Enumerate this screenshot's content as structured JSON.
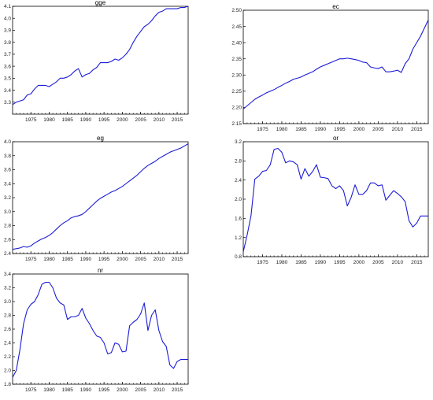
{
  "colors": {
    "series": "#1c1cd6",
    "axis": "#000000",
    "background": "#ffffff"
  },
  "chart_data": [
    {
      "type": "line",
      "title": "gge",
      "x": [
        1970,
        1971,
        1972,
        1973,
        1974,
        1975,
        1976,
        1977,
        1978,
        1979,
        1980,
        1981,
        1982,
        1983,
        1984,
        1985,
        1986,
        1987,
        1988,
        1989,
        1990,
        1991,
        1992,
        1993,
        1994,
        1995,
        1996,
        1997,
        1998,
        1999,
        2000,
        2001,
        2002,
        2003,
        2004,
        2005,
        2006,
        2007,
        2008,
        2009,
        2010,
        2011,
        2012,
        2013,
        2014,
        2015,
        2016,
        2017,
        2018
      ],
      "values": [
        3.28,
        3.3,
        3.31,
        3.32,
        3.36,
        3.37,
        3.41,
        3.44,
        3.44,
        3.44,
        3.43,
        3.45,
        3.47,
        3.5,
        3.5,
        3.51,
        3.53,
        3.56,
        3.58,
        3.51,
        3.53,
        3.54,
        3.57,
        3.59,
        3.63,
        3.63,
        3.63,
        3.64,
        3.66,
        3.65,
        3.67,
        3.7,
        3.74,
        3.8,
        3.85,
        3.89,
        3.93,
        3.95,
        3.98,
        4.02,
        4.05,
        4.06,
        4.08,
        4.08,
        4.08,
        4.08,
        4.09,
        4.09,
        4.1
      ],
      "ylim": [
        3.2,
        4.1
      ],
      "yticks": [
        "3.3",
        "3.4",
        "3.5",
        "3.6",
        "3.7",
        "3.8",
        "3.9",
        "4.0",
        "4.1"
      ],
      "yticks_val": [
        3.3,
        3.4,
        3.5,
        3.6,
        3.7,
        3.8,
        3.9,
        4.0,
        4.1
      ],
      "xlim": [
        1970,
        2018
      ],
      "xticks": [
        "1975",
        "1980",
        "1985",
        "1990",
        "1995",
        "2000",
        "2005",
        "2010",
        "2015"
      ],
      "xticks_val": [
        1975,
        1980,
        1985,
        1990,
        1995,
        2000,
        2005,
        2010,
        2015
      ]
    },
    {
      "type": "line",
      "title": "ec",
      "x": [
        1970,
        1971,
        1972,
        1973,
        1974,
        1975,
        1976,
        1977,
        1978,
        1979,
        1980,
        1981,
        1982,
        1983,
        1984,
        1985,
        1986,
        1987,
        1988,
        1989,
        1990,
        1991,
        1992,
        1993,
        1994,
        1995,
        1996,
        1997,
        1998,
        1999,
        2000,
        2001,
        2002,
        2003,
        2004,
        2005,
        2006,
        2007,
        2008,
        2009,
        2010,
        2011,
        2012,
        2013,
        2014,
        2015,
        2016,
        2017,
        2018
      ],
      "values": [
        2.195,
        2.205,
        2.215,
        2.225,
        2.232,
        2.238,
        2.245,
        2.25,
        2.255,
        2.262,
        2.268,
        2.275,
        2.28,
        2.287,
        2.29,
        2.294,
        2.3,
        2.305,
        2.31,
        2.318,
        2.325,
        2.33,
        2.335,
        2.34,
        2.345,
        2.35,
        2.35,
        2.352,
        2.35,
        2.348,
        2.345,
        2.34,
        2.338,
        2.325,
        2.322,
        2.32,
        2.325,
        2.31,
        2.31,
        2.312,
        2.315,
        2.308,
        2.335,
        2.35,
        2.38,
        2.4,
        2.42,
        2.445,
        2.47
      ],
      "ylim": [
        2.15,
        2.5
      ],
      "yticks": [
        "2.15",
        "2.20",
        "2.25",
        "2.30",
        "2.35",
        "2.40",
        "2.45",
        "2.50"
      ],
      "yticks_val": [
        2.15,
        2.2,
        2.25,
        2.3,
        2.35,
        2.4,
        2.45,
        2.5
      ],
      "xlim": [
        1970,
        2018
      ],
      "xticks": [
        "1975",
        "1980",
        "1985",
        "1990",
        "1995",
        "2000",
        "2005",
        "2010",
        "2015"
      ],
      "xticks_val": [
        1975,
        1980,
        1985,
        1990,
        1995,
        2000,
        2005,
        2010,
        2015
      ]
    },
    {
      "type": "line",
      "title": "eg",
      "x": [
        1970,
        1971,
        1972,
        1973,
        1974,
        1975,
        1976,
        1977,
        1978,
        1979,
        1980,
        1981,
        1982,
        1983,
        1984,
        1985,
        1986,
        1987,
        1988,
        1989,
        1990,
        1991,
        1992,
        1993,
        1994,
        1995,
        1996,
        1997,
        1998,
        1999,
        2000,
        2001,
        2002,
        2003,
        2004,
        2005,
        2006,
        2007,
        2008,
        2009,
        2010,
        2011,
        2012,
        2013,
        2014,
        2015,
        2016,
        2017,
        2018
      ],
      "values": [
        2.46,
        2.47,
        2.48,
        2.5,
        2.49,
        2.51,
        2.55,
        2.58,
        2.61,
        2.63,
        2.66,
        2.7,
        2.75,
        2.8,
        2.84,
        2.87,
        2.91,
        2.93,
        2.94,
        2.96,
        3.0,
        3.05,
        3.1,
        3.15,
        3.19,
        3.22,
        3.25,
        3.28,
        3.3,
        3.33,
        3.36,
        3.4,
        3.44,
        3.48,
        3.52,
        3.57,
        3.62,
        3.66,
        3.69,
        3.72,
        3.76,
        3.79,
        3.82,
        3.85,
        3.87,
        3.89,
        3.91,
        3.94,
        3.97
      ],
      "ylim": [
        2.4,
        4.0
      ],
      "yticks": [
        "2.4",
        "2.6",
        "2.8",
        "3.0",
        "3.2",
        "3.4",
        "3.6",
        "3.8",
        "4.0"
      ],
      "yticks_val": [
        2.4,
        2.6,
        2.8,
        3.0,
        3.2,
        3.4,
        3.6,
        3.8,
        4.0
      ],
      "xlim": [
        1970,
        2018
      ],
      "xticks": [
        "1975",
        "1980",
        "1985",
        "1990",
        "1995",
        "2000",
        "2005",
        "2010",
        "2015"
      ],
      "xticks_val": [
        1975,
        1980,
        1985,
        1990,
        1995,
        2000,
        2005,
        2010,
        2015
      ]
    },
    {
      "type": "line",
      "title": "or",
      "x": [
        1970,
        1971,
        1972,
        1973,
        1974,
        1975,
        1976,
        1977,
        1978,
        1979,
        1980,
        1981,
        1982,
        1983,
        1984,
        1985,
        1986,
        1987,
        1988,
        1989,
        1990,
        1991,
        1992,
        1993,
        1994,
        1995,
        1996,
        1997,
        1998,
        1999,
        2000,
        2001,
        2002,
        2003,
        2004,
        2005,
        2006,
        2007,
        2008,
        2009,
        2010,
        2011,
        2012,
        2013,
        2014,
        2015,
        2016,
        2017,
        2018
      ],
      "values": [
        0.9,
        1.25,
        1.65,
        2.42,
        2.48,
        2.58,
        2.6,
        2.72,
        3.04,
        3.06,
        2.98,
        2.76,
        2.8,
        2.78,
        2.72,
        2.42,
        2.64,
        2.48,
        2.58,
        2.72,
        2.46,
        2.45,
        2.43,
        2.28,
        2.22,
        2.28,
        2.18,
        1.86,
        2.04,
        2.3,
        2.1,
        2.1,
        2.18,
        2.34,
        2.34,
        2.28,
        2.3,
        1.98,
        2.08,
        2.18,
        2.12,
        2.05,
        1.95,
        1.55,
        1.42,
        1.5,
        1.65,
        1.65,
        1.65
      ],
      "ylim": [
        0.8,
        3.2
      ],
      "yticks": [
        "0.8",
        "1.2",
        "1.6",
        "2.0",
        "2.4",
        "2.8",
        "3.2"
      ],
      "yticks_val": [
        0.8,
        1.2,
        1.6,
        2.0,
        2.4,
        2.8,
        3.2
      ],
      "xlim": [
        1970,
        2018
      ],
      "xticks": [
        "1975",
        "1980",
        "1985",
        "1990",
        "1995",
        "2000",
        "2005",
        "2010",
        "2015"
      ],
      "xticks_val": [
        1975,
        1980,
        1985,
        1990,
        1995,
        2000,
        2005,
        2010,
        2015
      ]
    },
    {
      "type": "line",
      "title": "nr",
      "x": [
        1970,
        1971,
        1972,
        1973,
        1974,
        1975,
        1976,
        1977,
        1978,
        1979,
        1980,
        1981,
        1982,
        1983,
        1984,
        1985,
        1986,
        1987,
        1988,
        1989,
        1990,
        1991,
        1992,
        1993,
        1994,
        1995,
        1996,
        1997,
        1998,
        1999,
        2000,
        2001,
        2002,
        2003,
        2004,
        2005,
        2006,
        2007,
        2008,
        2009,
        2010,
        2011,
        2012,
        2013,
        2014,
        2015,
        2016,
        2017,
        2018
      ],
      "values": [
        1.9,
        2.0,
        2.3,
        2.68,
        2.88,
        2.96,
        3.0,
        3.1,
        3.25,
        3.28,
        3.28,
        3.2,
        3.05,
        2.98,
        2.95,
        2.74,
        2.78,
        2.78,
        2.8,
        2.9,
        2.76,
        2.68,
        2.58,
        2.5,
        2.48,
        2.4,
        2.24,
        2.26,
        2.4,
        2.38,
        2.27,
        2.28,
        2.65,
        2.7,
        2.74,
        2.82,
        2.98,
        2.58,
        2.8,
        2.88,
        2.58,
        2.42,
        2.35,
        2.08,
        2.03,
        2.13,
        2.16,
        2.16,
        2.16
      ],
      "ylim": [
        1.8,
        3.4
      ],
      "yticks": [
        "1.8",
        "2.0",
        "2.2",
        "2.4",
        "2.6",
        "2.8",
        "3.0",
        "3.2",
        "3.4"
      ],
      "yticks_val": [
        1.8,
        2.0,
        2.2,
        2.4,
        2.6,
        2.8,
        3.0,
        3.2,
        3.4
      ],
      "xlim": [
        1970,
        2018
      ],
      "xticks": [
        "1975",
        "1980",
        "1985",
        "1990",
        "1995",
        "2000",
        "2005",
        "2010",
        "2015"
      ],
      "xticks_val": [
        1975,
        1980,
        1985,
        1990,
        1995,
        2000,
        2005,
        2010,
        2015
      ]
    }
  ]
}
